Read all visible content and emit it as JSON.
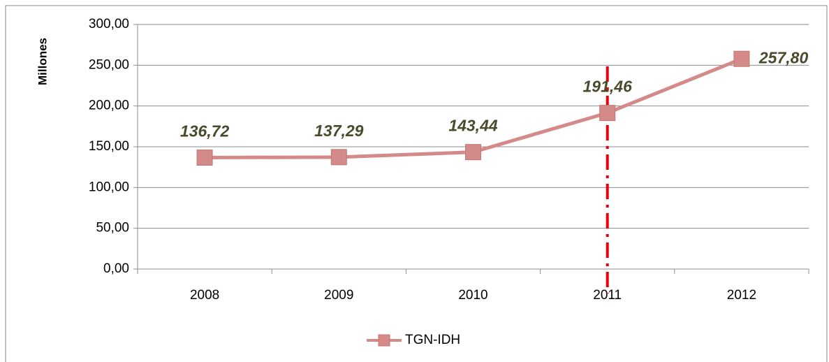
{
  "chart_data": {
    "type": "line",
    "y_label": "Millones",
    "categories": [
      "2008",
      "2009",
      "2010",
      "2011",
      "2012"
    ],
    "series": [
      {
        "name": "TGN-IDH",
        "color": "#d48a89",
        "values": [
          136.72,
          137.29,
          143.44,
          191.46,
          257.8
        ],
        "value_labels": [
          "136,72",
          "137,29",
          "143,44",
          "191,46",
          "257,80"
        ]
      }
    ],
    "ylim": [
      0,
      300
    ],
    "yticks": [
      {
        "value": 0,
        "label": "0,00"
      },
      {
        "value": 50,
        "label": "50,00"
      },
      {
        "value": 100,
        "label": "100,00"
      },
      {
        "value": 150,
        "label": "150,00"
      },
      {
        "value": 200,
        "label": "200,00"
      },
      {
        "value": 250,
        "label": "250,00"
      },
      {
        "value": 300,
        "label": "300,00"
      }
    ],
    "grid": true,
    "legend": "bottom",
    "marker_category": "2011",
    "marker_color": "#e8000b"
  }
}
